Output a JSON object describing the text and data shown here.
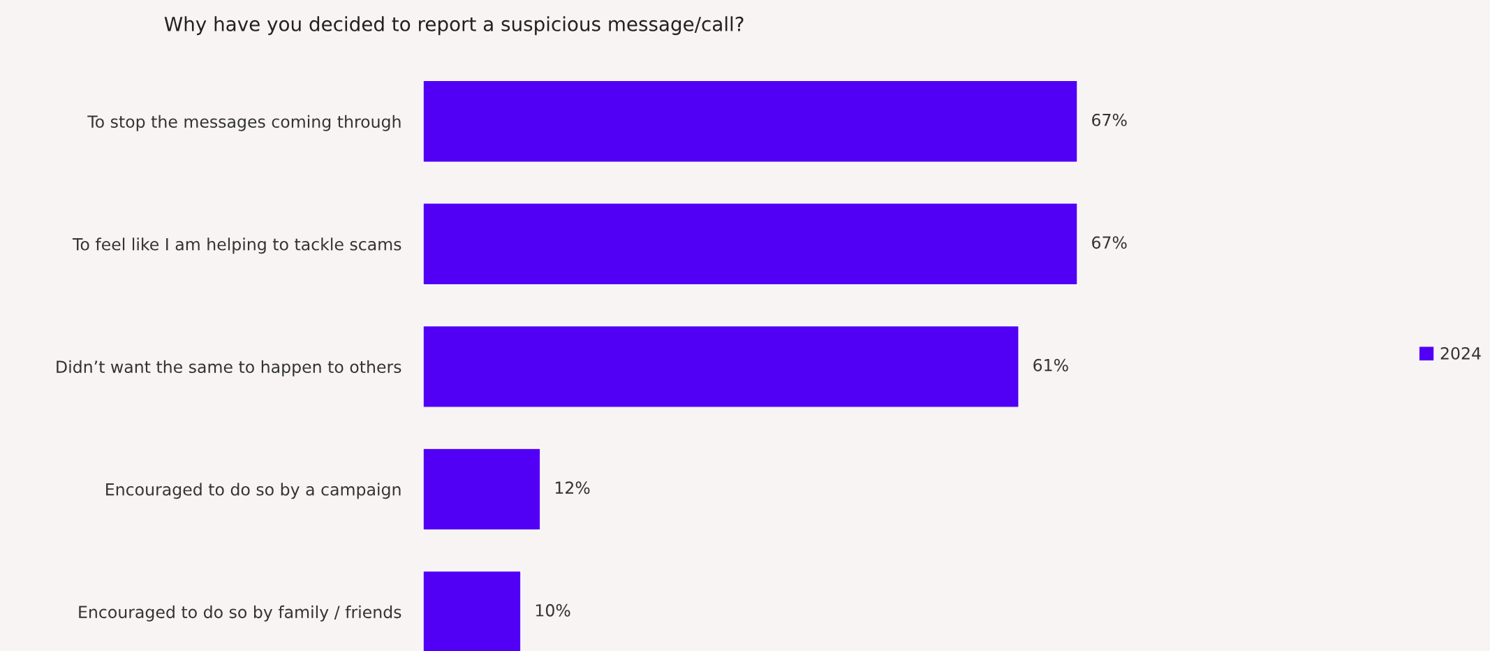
{
  "chart_data": {
    "type": "bar",
    "orientation": "horizontal",
    "title": "Why have you decided to report a suspicious message/call?",
    "categories": [
      "To stop the messages coming through",
      "To feel like I am helping to tackle scams",
      "Didn’t want the same to happen to others",
      "Encouraged to do so by a campaign",
      "Encouraged to do so by family / friends"
    ],
    "series": [
      {
        "name": "2024",
        "color": "#5200f5",
        "values": [
          67,
          67,
          61,
          12,
          10
        ],
        "value_labels": [
          "67%",
          "67%",
          "61%",
          "12%",
          "10%"
        ]
      }
    ],
    "legend": "right",
    "grid": false
  }
}
